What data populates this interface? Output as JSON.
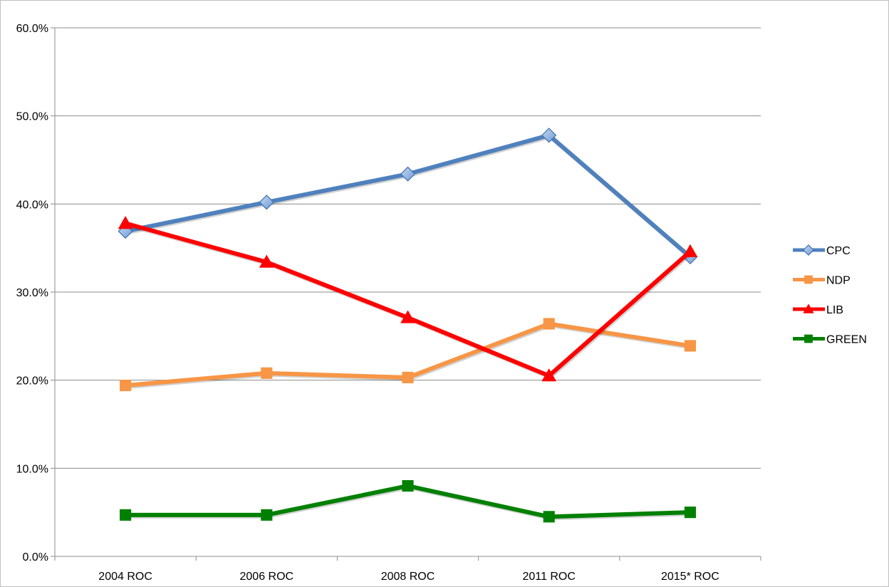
{
  "chart_data": {
    "type": "line",
    "title": "",
    "xlabel": "",
    "ylabel": "",
    "categories": [
      "2004 ROC",
      "2006 ROC",
      "2008 ROC",
      "2011 ROC",
      "2015* ROC"
    ],
    "ylim": [
      0,
      0.6
    ],
    "yticks": [
      0,
      0.1,
      0.2,
      0.3,
      0.4,
      0.5,
      0.6
    ],
    "ytick_labels": [
      "0.0%",
      "10.0%",
      "20.0%",
      "30.0%",
      "40.0%",
      "50.0%",
      "60.0%"
    ],
    "grid": true,
    "legend_position": "right",
    "series": [
      {
        "name": "CPC",
        "color": "#4f81bd",
        "marker": "diamond",
        "values": [
          0.369,
          0.402,
          0.434,
          0.478,
          0.34
        ]
      },
      {
        "name": "NDP",
        "color": "#f79646",
        "marker": "square",
        "values": [
          0.194,
          0.208,
          0.203,
          0.264,
          0.239
        ]
      },
      {
        "name": "LIB",
        "color": "#ff0000",
        "marker": "triangle",
        "values": [
          0.378,
          0.334,
          0.271,
          0.205,
          0.346
        ]
      },
      {
        "name": "GREEN",
        "color": "#008000",
        "marker": "square",
        "values": [
          0.047,
          0.047,
          0.08,
          0.045,
          0.05
        ]
      }
    ]
  }
}
